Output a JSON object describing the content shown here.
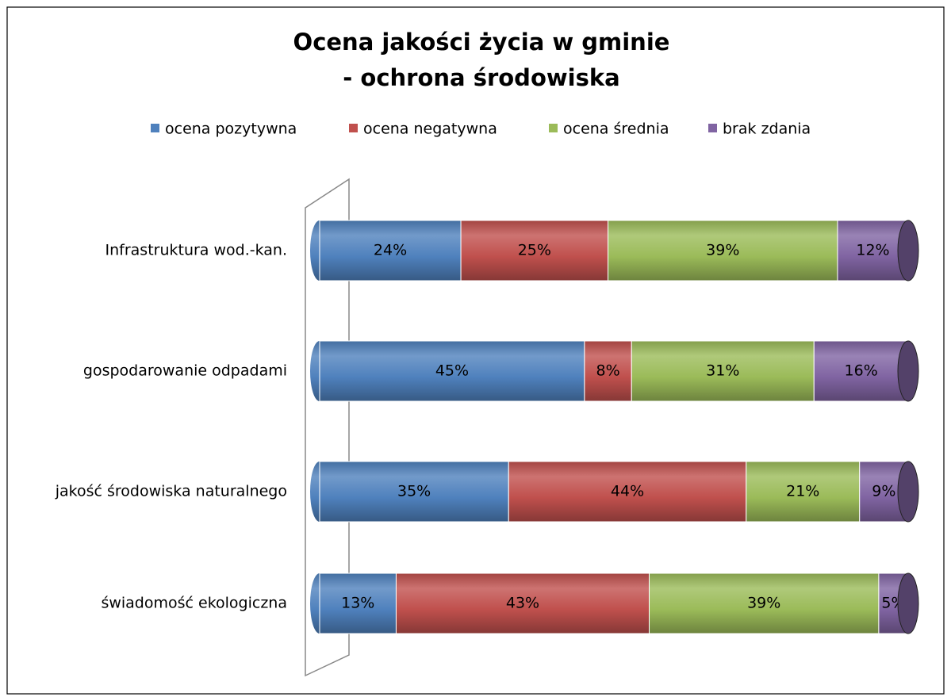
{
  "chart_data": {
    "type": "bar",
    "orientation": "horizontal",
    "stack": "percent",
    "title": [
      "Ocena jakości życia w gminie",
      "- ochrona środowiska"
    ],
    "categories": [
      "Infrastruktura wod.-kan.",
      "gospodarowanie odpadami",
      "jakość środowiska naturalnego",
      "świadomość ekologiczna"
    ],
    "series": [
      {
        "name": "ocena pozytywna",
        "color": "#4f81bd",
        "values": [
          24,
          45,
          35,
          13
        ],
        "value_labels": [
          "24%",
          "45%",
          "35%",
          "13%"
        ]
      },
      {
        "name": "ocena negatywna",
        "color": "#c0504d",
        "values": [
          25,
          8,
          44,
          43
        ],
        "value_labels": [
          "25%",
          "8%",
          "44%",
          "43%"
        ]
      },
      {
        "name": "ocena średnia",
        "color": "#9bbb59",
        "values": [
          39,
          31,
          21,
          39
        ],
        "value_labels": [
          "39%",
          "31%",
          "21%",
          "39%"
        ]
      },
      {
        "name": "brak zdania",
        "color": "#8064a2",
        "values": [
          12,
          16,
          9,
          5
        ],
        "value_labels": [
          "12%",
          "16%",
          "9%",
          "5%"
        ]
      }
    ],
    "legend": "top"
  }
}
